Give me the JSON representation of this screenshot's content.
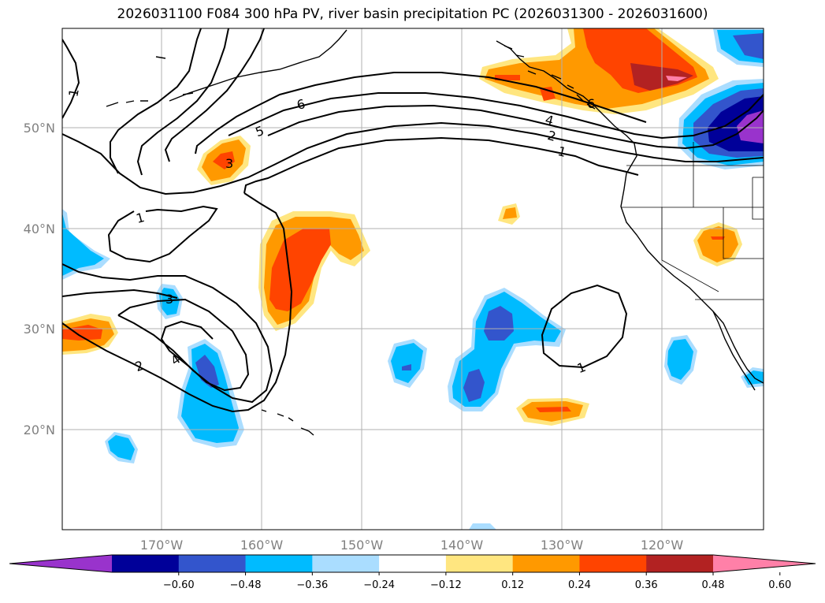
{
  "title": "2026031100 F084 300 hPa PV, river basin precipitation PC (2026031300 - 2026031600)",
  "map": {
    "lat_labels": [
      "50°N",
      "40°N",
      "30°N",
      "20°N"
    ],
    "lon_labels": [
      "170°W",
      "160°W",
      "150°W",
      "140°W",
      "130°W",
      "120°W"
    ],
    "contour_labels": [
      "1",
      "6",
      "5",
      "4",
      "2",
      "1",
      "3",
      "1",
      "3",
      "4",
      "2",
      "1",
      "6"
    ]
  },
  "colorbar": {
    "colors": [
      "#9933cc",
      "#000099",
      "#3355cc",
      "#00bbff",
      "#aaddff",
      "#ffffff",
      "#ffe680",
      "#ff9900",
      "#ff4400",
      "#b22222",
      "#ff80a8"
    ],
    "tick_labels": [
      "−0.60",
      "−0.48",
      "−0.36",
      "−0.24",
      "−0.12",
      "0.12",
      "0.24",
      "0.36",
      "0.48",
      "0.60"
    ]
  }
}
